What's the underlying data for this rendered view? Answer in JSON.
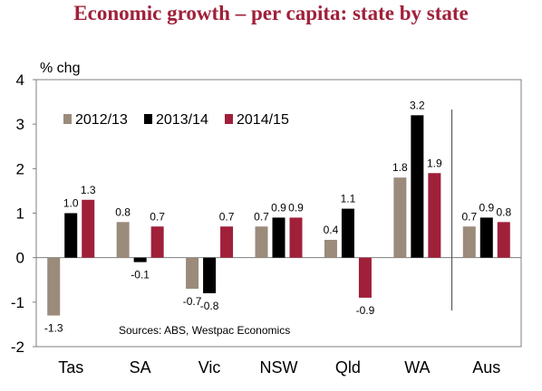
{
  "title": "Economic growth – per capita: state by state",
  "chart_data": {
    "type": "bar",
    "ylabel": "% chg",
    "ylim": [
      -2,
      4
    ],
    "yticks": [
      "-2",
      "-1",
      "0",
      "1",
      "2",
      "3",
      "4"
    ],
    "categories": [
      "Tas",
      "SA",
      "Vic",
      "NSW",
      "Qld",
      "WA",
      "Aus"
    ],
    "series": [
      {
        "name": "2012/13",
        "color": "#9b8b7b",
        "values": [
          -1.3,
          0.8,
          -0.7,
          0.7,
          0.4,
          1.8,
          0.7
        ],
        "labels": [
          "-1.3",
          "0.8",
          "-0.7",
          "0.7",
          "0.4",
          "1.8",
          "0.7"
        ]
      },
      {
        "name": "2013/14",
        "color": "#000000",
        "values": [
          1.0,
          -0.1,
          -0.8,
          0.9,
          1.1,
          3.2,
          0.9
        ],
        "labels": [
          "1.0",
          "-0.1",
          "-0.8",
          "0.9",
          "1.1",
          "3.2",
          "0.9"
        ]
      },
      {
        "name": "2014/15",
        "color": "#a0203a",
        "values": [
          1.3,
          0.7,
          0.7,
          0.9,
          -0.9,
          1.9,
          0.8
        ],
        "labels": [
          "1.3",
          "0.7",
          "0.7",
          "0.9",
          "-0.9",
          "1.9",
          "0.8"
        ]
      }
    ],
    "legend_position": "top-left",
    "source_note": "Sources:  ABS, Westpac Economics",
    "separator_before": "Aus",
    "grid": false
  }
}
